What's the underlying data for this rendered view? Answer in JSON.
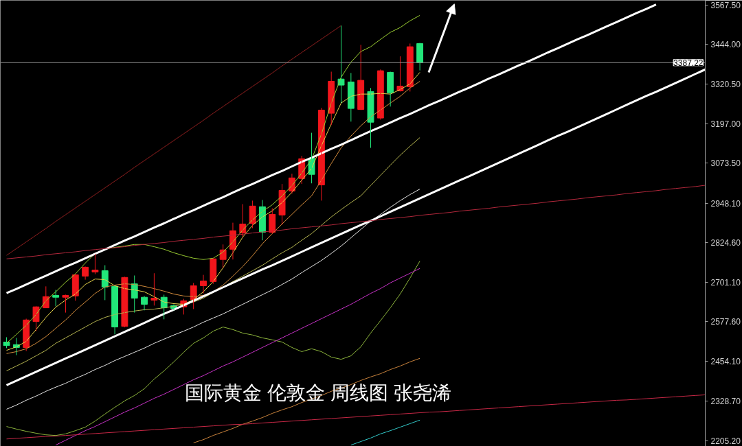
{
  "chart_data": {
    "type": "candlestick",
    "title": "国际黄金 伦敦金 周线图 张尧浠",
    "categories": [
      null,
      null,
      null,
      null,
      null,
      null,
      null,
      null,
      null,
      null,
      null,
      null,
      null,
      null,
      null,
      null,
      null,
      null,
      null,
      null,
      null,
      null,
      null,
      null,
      null,
      null,
      null,
      null,
      null,
      null,
      null,
      null,
      null,
      null,
      null,
      null,
      null,
      null,
      null,
      null,
      null,
      null,
      null,
      null,
      null,
      null,
      null,
      null,
      null,
      null,
      null,
      null,
      null,
      null,
      null,
      null,
      null,
      null,
      null,
      null,
      null,
      null,
      null,
      null,
      null,
      null,
      null,
      null,
      null,
      null,
      null,
      null
    ],
    "ohlc": [
      [
        2514,
        2529,
        2495,
        2503
      ],
      [
        2506,
        2527,
        2473,
        2497
      ],
      [
        2497,
        2587,
        2486,
        2583
      ],
      [
        2578,
        2626,
        2548,
        2624
      ],
      [
        2621,
        2688,
        2621,
        2656
      ],
      [
        2660,
        2677,
        2626,
        2654
      ],
      [
        2654,
        2662,
        2606,
        2660
      ],
      [
        2658,
        2726,
        2643,
        2724
      ],
      [
        2720,
        2750,
        2709,
        2748
      ],
      [
        2733,
        2789,
        2726,
        2739
      ],
      [
        2737,
        2754,
        2645,
        2686
      ],
      [
        2688,
        2690,
        2538,
        2561
      ],
      [
        2563,
        2718,
        2560,
        2716
      ],
      [
        2696,
        2722,
        2606,
        2651
      ],
      [
        2654,
        2658,
        2613,
        2632
      ],
      [
        2645,
        2729,
        2628,
        2651
      ],
      [
        2654,
        2662,
        2585,
        2621
      ],
      [
        2628,
        2632,
        2613,
        2619
      ],
      [
        2624,
        2649,
        2600,
        2643
      ],
      [
        2647,
        2699,
        2617,
        2690
      ],
      [
        2690,
        2724,
        2666,
        2705
      ],
      [
        2703,
        2776,
        2696,
        2774
      ],
      [
        2772,
        2819,
        2746,
        2802
      ],
      [
        2804,
        2887,
        2772,
        2862
      ],
      [
        2855,
        2945,
        2842,
        2883
      ],
      [
        2885,
        2956,
        2870,
        2939
      ],
      [
        2937,
        2958,
        2832,
        2857
      ],
      [
        2857,
        2932,
        2853,
        2913
      ],
      [
        2911,
        3008,
        2881,
        2988
      ],
      [
        2986,
        3040,
        2978,
        3027
      ],
      [
        3025,
        3096,
        3008,
        3087
      ],
      [
        3089,
        3168,
        3010,
        3038
      ],
      [
        3005,
        3246,
        2956,
        3239
      ],
      [
        3229,
        3359,
        3192,
        3329
      ],
      [
        3336,
        3503,
        3261,
        3317
      ],
      [
        3327,
        3355,
        3203,
        3244
      ],
      [
        3241,
        3443,
        3239,
        3332
      ],
      [
        3297,
        3308,
        3121,
        3201
      ],
      [
        3214,
        3366,
        3209,
        3362
      ],
      [
        3357,
        3359,
        3250,
        3293
      ],
      [
        3299,
        3407,
        3297,
        3314
      ],
      [
        3312,
        3447,
        3297,
        3437
      ],
      [
        3447,
        3449,
        3363,
        3387
      ],
      null,
      null,
      null,
      null,
      null,
      null,
      null,
      null,
      null,
      null,
      null,
      null,
      null,
      null,
      null,
      null,
      null,
      null,
      null,
      null,
      null,
      null,
      null,
      null,
      null,
      null,
      null,
      null,
      null
    ],
    "colors": [
      "#22e67a",
      "#22e67a",
      "#f2161c",
      "#f2161c",
      "#f2161c",
      "#22e67a",
      "#f2161c",
      "#f2161c",
      "#f2161c",
      "#f2161c",
      "#22e67a",
      "#22e67a",
      "#f2161c",
      "#22e67a",
      "#22e67a",
      "#f2161c",
      "#22e67a",
      "#22e67a",
      "#f2161c",
      "#f2161c",
      "#f2161c",
      "#f2161c",
      "#f2161c",
      "#f2161c",
      "#f2161c",
      "#f2161c",
      "#22e67a",
      "#f2161c",
      "#f2161c",
      "#f2161c",
      "#f2161c",
      "#22e67a",
      "#f2161c",
      "#f2161c",
      "#22e67a",
      "#22e67a",
      "#f2161c",
      "#22e67a",
      "#f2161c",
      "#22e67a",
      "#f2161c",
      "#f2161c",
      "#22e67a",
      null,
      null,
      null,
      null,
      null,
      null,
      null,
      null,
      null,
      null,
      null,
      null,
      null,
      null,
      null,
      null,
      null,
      null,
      null,
      null,
      null,
      null,
      null,
      null,
      null,
      null,
      null,
      null,
      null
    ],
    "series": [
      {
        "type": "line",
        "color": "#9acd32",
        "values": [
          2510,
          2538,
          2566,
          2600,
          2643,
          2671,
          2701,
          2727,
          2761,
          2791,
          2804,
          2810,
          2814,
          2819,
          2819,
          2812,
          2804,
          2793,
          2784,
          2776,
          2772,
          2776,
          2795,
          2827,
          2864,
          2896,
          2922,
          2943,
          2971,
          3003,
          3042,
          3085,
          3164,
          3261,
          3342,
          3389,
          3422,
          3437,
          3460,
          3482,
          3497,
          3518,
          3535,
          null,
          null,
          null,
          null,
          null,
          null,
          null,
          null,
          null,
          null,
          null,
          null,
          null,
          null,
          null,
          null,
          null,
          null,
          null,
          null,
          null,
          null,
          null,
          null,
          null,
          null,
          null,
          null,
          null
        ]
      },
      {
        "type": "line",
        "color": "#e6d24a",
        "values": [
          2488,
          2499,
          2516,
          2553,
          2591,
          2623,
          2645,
          2664,
          2694,
          2711,
          2709,
          2690,
          2681,
          2677,
          2671,
          2656,
          2639,
          2634,
          2632,
          2647,
          2671,
          2703,
          2746,
          2793,
          2842,
          2879,
          2905,
          2924,
          2950,
          2982,
          3020,
          3057,
          3128,
          3196,
          3261,
          3282,
          3289,
          3289,
          3291,
          3289,
          3303,
          3321,
          3357,
          null,
          null,
          null,
          null,
          null,
          null,
          null,
          null,
          null,
          null,
          null,
          null,
          null,
          null,
          null,
          null,
          null,
          null,
          null,
          null,
          null,
          null,
          null,
          null,
          null,
          null,
          null,
          null,
          null
        ]
      },
      {
        "type": "line",
        "color": "#d48c3c",
        "values": [
          2478,
          2484,
          2493,
          2510,
          2531,
          2557,
          2583,
          2613,
          2639,
          2666,
          2686,
          2692,
          2696,
          2694,
          2688,
          2681,
          2673,
          2664,
          2658,
          2656,
          2660,
          2671,
          2692,
          2720,
          2750,
          2784,
          2821,
          2853,
          2883,
          2913,
          2943,
          2971,
          3020,
          3072,
          3121,
          3158,
          3190,
          3218,
          3239,
          3261,
          3282,
          3308,
          3329,
          null,
          null,
          null,
          null,
          null,
          null,
          null,
          null,
          null,
          null,
          null,
          null,
          null,
          null,
          null,
          null,
          null,
          null,
          null,
          null,
          null,
          null,
          null,
          null,
          null,
          null,
          null,
          null,
          null
        ]
      },
      {
        "type": "line",
        "color": "#b4b450",
        "values": [
          2424,
          2439,
          2454,
          2471,
          2488,
          2510,
          2527,
          2544,
          2561,
          2578,
          2591,
          2600,
          2606,
          2611,
          2615,
          2617,
          2621,
          2626,
          2632,
          2639,
          2651,
          2669,
          2686,
          2703,
          2720,
          2737,
          2754,
          2774,
          2793,
          2810,
          2832,
          2853,
          2879,
          2905,
          2928,
          2950,
          2971,
          3003,
          3035,
          3067,
          3098,
          3126,
          3153,
          null,
          null,
          null,
          null,
          null,
          null,
          null,
          null,
          null,
          null,
          null,
          null,
          null,
          null,
          null,
          null,
          null,
          null,
          null,
          null,
          null,
          null,
          null,
          null,
          null,
          null,
          null,
          null,
          null
        ]
      },
      {
        "type": "line",
        "color": "#e6e6e6",
        "values": [
          2304,
          2317,
          2332,
          2345,
          2360,
          2373,
          2385,
          2400,
          2413,
          2428,
          2441,
          2456,
          2469,
          2482,
          2495,
          2510,
          2523,
          2536,
          2548,
          2561,
          2576,
          2589,
          2602,
          2617,
          2632,
          2647,
          2662,
          2677,
          2694,
          2711,
          2731,
          2750,
          2769,
          2791,
          2814,
          2840,
          2866,
          2892,
          2913,
          2935,
          2956,
          2975,
          2992,
          null,
          null,
          null,
          null,
          null,
          null,
          null,
          null,
          null,
          null,
          null,
          null,
          null,
          null,
          null,
          null,
          null,
          null,
          null,
          null,
          null,
          null,
          null,
          null,
          null,
          null,
          null,
          null,
          null
        ]
      },
      {
        "type": "line",
        "color": "#8cb43c",
        "values": [
          2250,
          2242,
          2235,
          2229,
          2224,
          2222,
          2227,
          2237,
          2248,
          2267,
          2289,
          2310,
          2330,
          2347,
          2368,
          2398,
          2424,
          2452,
          2482,
          2510,
          2527,
          2548,
          2561,
          2553,
          2542,
          2536,
          2527,
          2521,
          2514,
          2497,
          2484,
          2493,
          2484,
          2467,
          2460,
          2471,
          2499,
          2542,
          2581,
          2621,
          2664,
          2714,
          2767,
          null,
          null,
          null,
          null,
          null,
          null,
          null,
          null,
          null,
          null,
          null,
          null,
          null,
          null,
          null,
          null,
          null,
          null,
          null,
          null,
          null,
          null,
          null,
          null,
          null,
          null,
          null,
          null,
          null
        ]
      },
      {
        "type": "line",
        "color": "#c832c8",
        "values": [
          null,
          null,
          null,
          null,
          null,
          2192,
          2207,
          2222,
          2237,
          2250,
          2265,
          2280,
          2295,
          2308,
          2323,
          2338,
          2351,
          2366,
          2381,
          2396,
          2409,
          2424,
          2439,
          2452,
          2467,
          2482,
          2497,
          2512,
          2527,
          2542,
          2557,
          2572,
          2587,
          2602,
          2617,
          2632,
          2649,
          2666,
          2681,
          2699,
          2714,
          2729,
          2744,
          null,
          null,
          null,
          null,
          null,
          null,
          null,
          null,
          null,
          null,
          null,
          null,
          null,
          null,
          null,
          null,
          null,
          null,
          null,
          null,
          null,
          null,
          null,
          null,
          null,
          null,
          null,
          null,
          null
        ]
      },
      {
        "type": "line",
        "color": "#c8823c",
        "values": [
          null,
          null,
          null,
          null,
          null,
          null,
          null,
          null,
          null,
          null,
          null,
          null,
          null,
          null,
          null,
          null,
          null,
          null,
          null,
          2199,
          2209,
          2222,
          2233,
          2244,
          2257,
          2267,
          2278,
          2291,
          2302,
          2312,
          2325,
          2336,
          2347,
          2360,
          2370,
          2381,
          2394,
          2405,
          2415,
          2428,
          2439,
          2452,
          2463,
          null,
          null,
          null,
          null,
          null,
          null,
          null,
          null,
          null,
          null,
          null,
          null,
          null,
          null,
          null,
          null,
          null,
          null,
          null,
          null,
          null,
          null,
          null,
          null,
          null,
          null,
          null,
          null,
          null
        ]
      },
      {
        "type": "line",
        "color": "#32c8c8",
        "values": [
          null,
          null,
          null,
          null,
          null,
          null,
          null,
          null,
          null,
          null,
          null,
          null,
          null,
          null,
          null,
          null,
          null,
          null,
          null,
          null,
          null,
          null,
          null,
          null,
          null,
          null,
          null,
          null,
          null,
          null,
          null,
          null,
          null,
          null,
          null,
          2192,
          2203,
          2214,
          2227,
          2237,
          2248,
          2259,
          2270,
          null,
          null,
          null,
          null,
          null,
          null,
          null,
          null,
          null,
          null,
          null,
          null,
          null,
          null,
          null,
          null,
          null,
          null,
          null,
          null,
          null,
          null,
          null,
          null,
          null,
          null,
          null,
          null,
          null
        ]
      },
      {
        "type": "line",
        "color": "#ffffff",
        "values": [
          2667,
          2680,
          2694,
          2708,
          2721,
          2735,
          2749,
          2762,
          2776,
          2790,
          2803,
          2817,
          2831,
          2844,
          2858,
          2872,
          2885,
          2899,
          2913,
          2926,
          2940,
          2954,
          2967,
          2981,
          2995,
          3008,
          3022,
          3036,
          3049,
          3063,
          3077,
          3090,
          3104,
          3118,
          3131,
          3145,
          3159,
          3173,
          3186,
          3200,
          3214,
          3227,
          3241,
          3255,
          3268,
          3282,
          3296,
          3309,
          3323,
          3337,
          3350,
          3364,
          3378,
          3391,
          3405,
          3419,
          3432,
          3446,
          3460,
          3473,
          3487,
          3501,
          3514,
          3528,
          3542,
          3555,
          3569,
          null,
          null,
          null,
          null,
          null
        ]
      },
      {
        "type": "line",
        "color": "#ffffff",
        "values": [
          2379,
          2393,
          2407,
          2421,
          2435,
          2449,
          2463,
          2476,
          2490,
          2504,
          2518,
          2532,
          2546,
          2560,
          2574,
          2588,
          2602,
          2615,
          2629,
          2643,
          2657,
          2671,
          2685,
          2699,
          2713,
          2727,
          2741,
          2754,
          2768,
          2782,
          2796,
          2810,
          2824,
          2838,
          2852,
          2866,
          2880,
          2893,
          2907,
          2921,
          2935,
          2949,
          2963,
          2977,
          2991,
          3005,
          3019,
          3032,
          3046,
          3060,
          3074,
          3088,
          3102,
          3116,
          3130,
          3144,
          3158,
          3171,
          3185,
          3199,
          3213,
          3227,
          3241,
          3255,
          3269,
          3283,
          3296,
          3310,
          3324,
          3338,
          3352,
          3366
        ]
      },
      {
        "type": "line",
        "color": "#8c1e1e",
        "values": [
          2785,
          2806,
          2827,
          2848,
          2869,
          2891,
          2912,
          2933,
          2954,
          2975,
          2996,
          3017,
          3038,
          3060,
          3081,
          3102,
          3123,
          3144,
          3165,
          3186,
          3207,
          3229,
          3250,
          3271,
          3292,
          3313,
          3334,
          3355,
          3377,
          3398,
          3419,
          3440,
          3461,
          3482,
          3503,
          null,
          null,
          null,
          null,
          null,
          null,
          null,
          null,
          null,
          null,
          null,
          null,
          null,
          null,
          null,
          null,
          null,
          null,
          null,
          null,
          null,
          null,
          null,
          null,
          null,
          null,
          null,
          null,
          null,
          null,
          null,
          null,
          null,
          null,
          null,
          null,
          null
        ]
      },
      {
        "type": "line",
        "color": "#b4283c",
        "values": [
          2774,
          2777,
          2780,
          2783,
          2787,
          2790,
          2793,
          2796,
          2800,
          2803,
          2806,
          2809,
          2812,
          2816,
          2819,
          2822,
          2825,
          2829,
          2832,
          2835,
          2838,
          2842,
          2845,
          2848,
          2851,
          2855,
          2858,
          2861,
          2864,
          2868,
          2871,
          2874,
          2877,
          2880,
          2884,
          2887,
          2890,
          2893,
          2897,
          2900,
          2903,
          2906,
          2910,
          2913,
          2916,
          2919,
          2923,
          2926,
          2929,
          2932,
          2936,
          2939,
          2942,
          2945,
          2948,
          2952,
          2955,
          2958,
          2961,
          2965,
          2968,
          2971,
          2974,
          2978,
          2981,
          2984,
          2987,
          2991,
          2994,
          2997,
          3000,
          3004
        ]
      },
      {
        "type": "line",
        "color": "#c82846",
        "values": [
          2211,
          2213,
          2215,
          2217,
          2219,
          2220,
          2222,
          2224,
          2226,
          2228,
          2230,
          2232,
          2234,
          2236,
          2238,
          2240,
          2242,
          2244,
          2246,
          2248,
          2250,
          2252,
          2254,
          2256,
          2257,
          2259,
          2261,
          2263,
          2265,
          2267,
          2269,
          2271,
          2273,
          2275,
          2277,
          2279,
          2281,
          2283,
          2285,
          2287,
          2289,
          2291,
          2293,
          2295,
          2296,
          2298,
          2300,
          2302,
          2304,
          2306,
          2308,
          2310,
          2312,
          2314,
          2316,
          2318,
          2320,
          2322,
          2324,
          2326,
          2328,
          2330,
          2332,
          2333,
          2335,
          2337,
          2339,
          2341,
          2343,
          2345,
          2347,
          2349
        ]
      }
    ],
    "ylim": [
      2188,
      3582
    ],
    "yticks": [
      {
        "value": 3567.5,
        "label": "3567.50"
      },
      {
        "value": 3444,
        "label": "3444.00"
      },
      {
        "value": 3320.5,
        "label": "3320.50"
      },
      {
        "value": 3197,
        "label": "3197.00"
      },
      {
        "value": 3073.5,
        "label": "3073.50"
      },
      {
        "value": 2948.1,
        "label": "2948.10"
      },
      {
        "value": 2824.6,
        "label": "2824.60"
      },
      {
        "value": 2701.1,
        "label": "2701.10"
      },
      {
        "value": 2577.6,
        "label": "2577.60"
      },
      {
        "value": 2454.1,
        "label": "2454.10"
      },
      {
        "value": 2328.7,
        "label": "2328.70"
      },
      {
        "value": 2205.2,
        "label": "2205.20"
      }
    ],
    "ref_lines": [
      {
        "axis": "y",
        "value": 3387.22,
        "label": "3387.22",
        "color": "#8c8c8c"
      }
    ],
    "tick_labels": "y"
  }
}
